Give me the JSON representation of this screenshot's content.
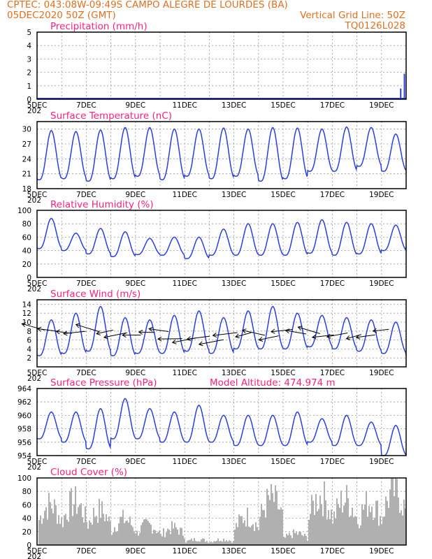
{
  "header": {
    "line1_left": "CPTEC:   043:08W-09:49S   CAMPO ALEGRE DE LOURDES (BA)",
    "line2_left": "05DEC2020 50Z (GMT)",
    "line2_right": "Vertical Grid Line: 50Z",
    "line3_right": "TQ0126L028"
  },
  "x_tick_labels": [
    "5DEC",
    "7DEC",
    "9DEC",
    "11DEC",
    "13DEC",
    "15DEC",
    "17DEC",
    "19DEC"
  ],
  "x_year_stub": "202",
  "chart_data": [
    {
      "type": "bar",
      "title": "Precipitation (mm/h)",
      "ylim": [
        0,
        5
      ],
      "yticks": [
        0,
        1,
        2,
        3,
        4,
        5
      ],
      "x_days": [
        0,
        15
      ],
      "grid": true,
      "events": [
        {
          "day": 14.78,
          "value": 0.8
        },
        {
          "day": 14.93,
          "value": 1.9
        }
      ]
    },
    {
      "type": "line",
      "title": "Surface Temperature (nC)",
      "ylim": [
        18,
        31.5
      ],
      "yticks": [
        18,
        21,
        24,
        27,
        30
      ],
      "x_days": [
        0,
        15
      ],
      "grid": true,
      "series": [
        {
          "maxima": [
            29.7,
            29.5,
            29.8,
            30.3,
            30.3,
            30.0,
            30.0,
            30.2,
            30.0,
            30.3,
            30.2,
            30.0,
            30.4,
            30.3,
            29.0
          ],
          "minima": [
            19.8,
            20.0,
            19.5,
            20.0,
            20.5,
            19.8,
            20.5,
            20.0,
            20.5,
            19.5,
            20.0,
            21.5,
            21.5,
            22.5,
            21.5
          ]
        }
      ]
    },
    {
      "type": "line",
      "title": "Relative Humidity (%)",
      "ylim": [
        0,
        100
      ],
      "yticks": [
        0,
        20,
        40,
        60,
        80,
        100
      ],
      "x_days": [
        0,
        15
      ],
      "grid": true,
      "series": [
        {
          "maxima": [
            88,
            66,
            73,
            68,
            58,
            60,
            60,
            72,
            80,
            80,
            82,
            86,
            82,
            80,
            78,
            67
          ],
          "minima": [
            43,
            40,
            35,
            31,
            34,
            33,
            28,
            33,
            33,
            33,
            33,
            36,
            33,
            35,
            40,
            45
          ]
        }
      ]
    },
    {
      "type": "line",
      "title": "Surface Wind (m/s)",
      "ylim": [
        0,
        15
      ],
      "yticks": [
        2,
        4,
        6,
        8,
        10,
        12,
        14
      ],
      "x_days": [
        0,
        15
      ],
      "grid": true,
      "series": [
        {
          "maxima": [
            10.5,
            12.0,
            13.5,
            11.0,
            10.5,
            11.5,
            12.5,
            11.0,
            12.5,
            13.5,
            12.0,
            11.5,
            11.0,
            10.5,
            10.0,
            7.0
          ],
          "minima": [
            2.5,
            3.0,
            3.5,
            2.5,
            3.0,
            3.0,
            3.5,
            3.0,
            4.0,
            4.0,
            4.0,
            4.5,
            4.0,
            3.5,
            3.0,
            2.5
          ]
        }
      ],
      "vectors_note": "wind barb arrows drawn along the series"
    },
    {
      "type": "line",
      "title": "Surface Pressure (hPa)",
      "annotation": "Model Altitude: 474.974 m",
      "ylim": [
        954,
        964
      ],
      "yticks": [
        954,
        956,
        958,
        960,
        962,
        964
      ],
      "x_days": [
        0,
        15
      ],
      "grid": true,
      "series": [
        {
          "maxima": [
            960.5,
            960.5,
            961.0,
            962.5,
            961.0,
            960.5,
            961.5,
            960.0,
            960.0,
            960.0,
            960.5,
            959.5,
            960.0,
            959.0,
            958.5
          ],
          "minima": [
            956.5,
            956.0,
            955.0,
            956.5,
            956.5,
            956.0,
            956.0,
            956.0,
            955.5,
            955.5,
            955.5,
            956.0,
            955.5,
            955.5,
            954.0
          ]
        }
      ]
    },
    {
      "type": "area",
      "title": "Cloud Cover (%)",
      "ylim": [
        0,
        100
      ],
      "yticks": [
        0,
        20,
        40,
        60,
        80,
        100
      ],
      "x_days": [
        0,
        15
      ],
      "grid": true,
      "series": [
        {
          "fill_color": "#b0b0b0",
          "daily_level": [
            70,
            75,
            60,
            45,
            35,
            30,
            10,
            10,
            50,
            80,
            20,
            85,
            80,
            75,
            95
          ]
        }
      ]
    }
  ],
  "colors": {
    "series": "#2a3fe0",
    "title": "#ff2080",
    "header": "#e07020",
    "fill": "#b0b0b0"
  }
}
